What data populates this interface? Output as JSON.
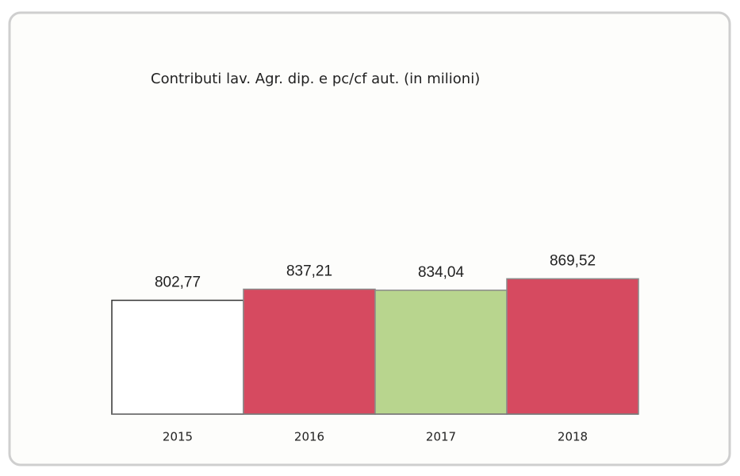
{
  "chart_data": {
    "type": "bar",
    "title": "Contributi lav. Agr. dip. e pc/cf aut. (in milioni)",
    "categories": [
      "2015",
      "2016",
      "2017",
      "2018"
    ],
    "values": [
      802.77,
      837.21,
      834.04,
      869.52
    ],
    "value_labels": [
      "802,77",
      "837,21",
      "834,04",
      "869,52"
    ],
    "colors": [
      "#ffffff",
      "#d64a60",
      "#b8d58e",
      "#d64a60"
    ],
    "ylim": [
      450,
      900
    ]
  }
}
